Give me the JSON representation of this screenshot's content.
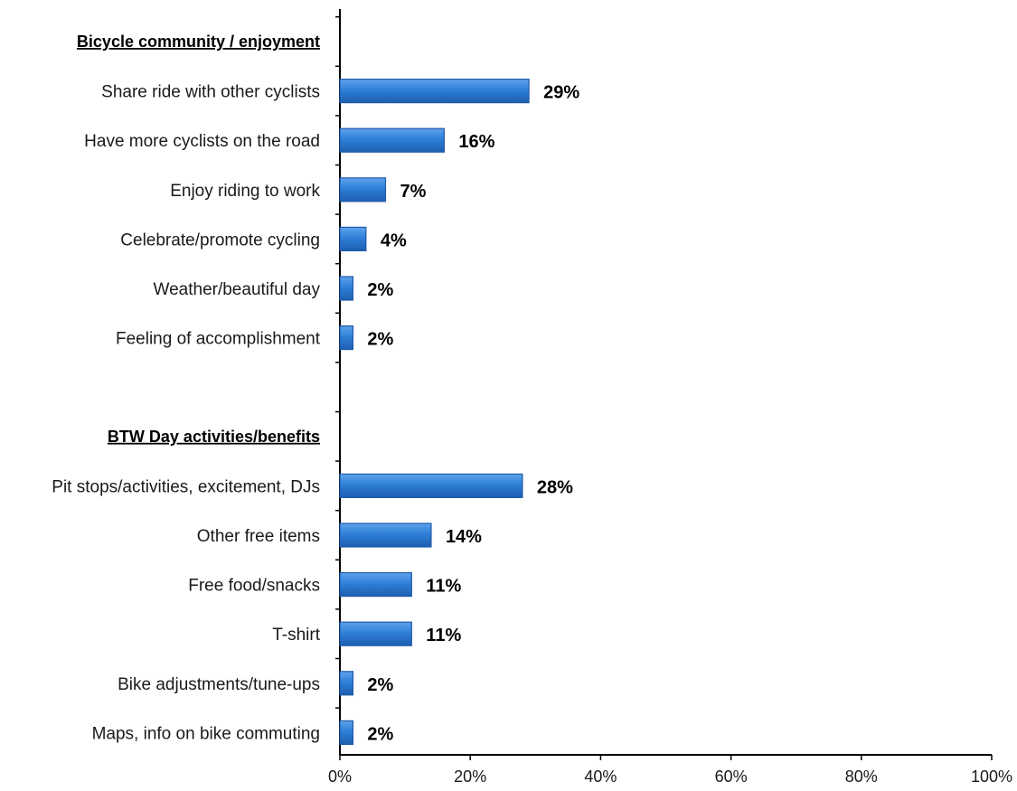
{
  "chart_data": {
    "type": "bar",
    "orientation": "horizontal",
    "title": "",
    "xlabel": "",
    "ylabel": "",
    "xlim": [
      0,
      100
    ],
    "x_ticks": [
      "0%",
      "20%",
      "40%",
      "60%",
      "80%",
      "100%"
    ],
    "x_tick_values": [
      0,
      20,
      40,
      60,
      80,
      100
    ],
    "grid": false,
    "bar_color": "#2f7fd8",
    "bar_edge_color": "#1f5aa8",
    "rows": [
      {
        "kind": "group",
        "label": "Bicycle community / enjoyment"
      },
      {
        "kind": "bar",
        "label": "Share ride with other cyclists",
        "value": 29,
        "value_label": "29%"
      },
      {
        "kind": "bar",
        "label": "Have more cyclists on the road",
        "value": 16,
        "value_label": "16%"
      },
      {
        "kind": "bar",
        "label": "Enjoy riding to work",
        "value": 7,
        "value_label": "7%"
      },
      {
        "kind": "bar",
        "label": "Celebrate/promote cycling",
        "value": 4,
        "value_label": "4%"
      },
      {
        "kind": "bar",
        "label": "Weather/beautiful day",
        "value": 2,
        "value_label": "2%"
      },
      {
        "kind": "bar",
        "label": "Feeling of accomplishment",
        "value": 2,
        "value_label": "2%"
      },
      {
        "kind": "spacer"
      },
      {
        "kind": "group",
        "label": "BTW Day activities/benefits"
      },
      {
        "kind": "bar",
        "label": "Pit stops/activities, excitement, DJs",
        "value": 28,
        "value_label": "28%"
      },
      {
        "kind": "bar",
        "label": "Other free items",
        "value": 14,
        "value_label": "14%"
      },
      {
        "kind": "bar",
        "label": "Free food/snacks",
        "value": 11,
        "value_label": "11%"
      },
      {
        "kind": "bar",
        "label": "T-shirt",
        "value": 11,
        "value_label": "11%"
      },
      {
        "kind": "bar",
        "label": "Bike adjustments/tune-ups",
        "value": 2,
        "value_label": "2%"
      },
      {
        "kind": "bar",
        "label": "Maps, info on bike commuting",
        "value": 2,
        "value_label": "2%"
      }
    ]
  }
}
